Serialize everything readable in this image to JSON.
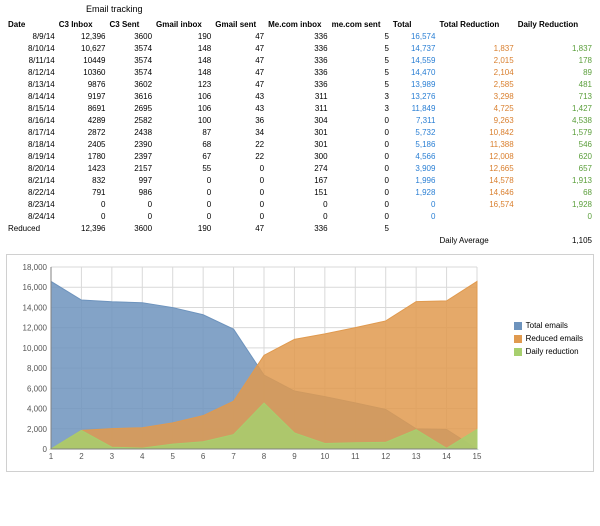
{
  "title": "Email tracking",
  "columns": [
    "Date",
    "C3 Inbox",
    "C3 Sent",
    "Gmail inbox",
    "Gmail sent",
    "Me.com inbox",
    "me.com sent",
    "Total",
    "Total Reduction",
    "Daily Reduction"
  ],
  "rows": [
    {
      "date": "8/9/14",
      "c3i": "12,396",
      "c3s": "3600",
      "gi": "190",
      "gs": "47",
      "mi": "336",
      "ms": "5",
      "total": "16,574",
      "tr": "",
      "dr": ""
    },
    {
      "date": "8/10/14",
      "c3i": "10,627",
      "c3s": "3574",
      "gi": "148",
      "gs": "47",
      "mi": "336",
      "ms": "5",
      "total": "14,737",
      "tr": "1,837",
      "dr": "1,837"
    },
    {
      "date": "8/11/14",
      "c3i": "10449",
      "c3s": "3574",
      "gi": "148",
      "gs": "47",
      "mi": "336",
      "ms": "5",
      "total": "14,559",
      "tr": "2,015",
      "dr": "178"
    },
    {
      "date": "8/12/14",
      "c3i": "10360",
      "c3s": "3574",
      "gi": "148",
      "gs": "47",
      "mi": "336",
      "ms": "5",
      "total": "14,470",
      "tr": "2,104",
      "dr": "89"
    },
    {
      "date": "8/13/14",
      "c3i": "9876",
      "c3s": "3602",
      "gi": "123",
      "gs": "47",
      "mi": "336",
      "ms": "5",
      "total": "13,989",
      "tr": "2,585",
      "dr": "481"
    },
    {
      "date": "8/14/14",
      "c3i": "9197",
      "c3s": "3616",
      "gi": "106",
      "gs": "43",
      "mi": "311",
      "ms": "3",
      "total": "13,276",
      "tr": "3,298",
      "dr": "713"
    },
    {
      "date": "8/15/14",
      "c3i": "8691",
      "c3s": "2695",
      "gi": "106",
      "gs": "43",
      "mi": "311",
      "ms": "3",
      "total": "11,849",
      "tr": "4,725",
      "dr": "1,427"
    },
    {
      "date": "8/16/14",
      "c3i": "4289",
      "c3s": "2582",
      "gi": "100",
      "gs": "36",
      "mi": "304",
      "ms": "0",
      "total": "7,311",
      "tr": "9,263",
      "dr": "4,538"
    },
    {
      "date": "8/17/14",
      "c3i": "2872",
      "c3s": "2438",
      "gi": "87",
      "gs": "34",
      "mi": "301",
      "ms": "0",
      "total": "5,732",
      "tr": "10,842",
      "dr": "1,579"
    },
    {
      "date": "8/18/14",
      "c3i": "2405",
      "c3s": "2390",
      "gi": "68",
      "gs": "22",
      "mi": "301",
      "ms": "0",
      "total": "5,186",
      "tr": "11,388",
      "dr": "546"
    },
    {
      "date": "8/19/14",
      "c3i": "1780",
      "c3s": "2397",
      "gi": "67",
      "gs": "22",
      "mi": "300",
      "ms": "0",
      "total": "4,566",
      "tr": "12,008",
      "dr": "620"
    },
    {
      "date": "8/20/14",
      "c3i": "1423",
      "c3s": "2157",
      "gi": "55",
      "gs": "0",
      "mi": "274",
      "ms": "0",
      "total": "3,909",
      "tr": "12,665",
      "dr": "657"
    },
    {
      "date": "8/21/14",
      "c3i": "832",
      "c3s": "997",
      "gi": "0",
      "gs": "0",
      "mi": "167",
      "ms": "0",
      "total": "1,996",
      "tr": "14,578",
      "dr": "1,913"
    },
    {
      "date": "8/22/14",
      "c3i": "791",
      "c3s": "986",
      "gi": "0",
      "gs": "0",
      "mi": "151",
      "ms": "0",
      "total": "1,928",
      "tr": "14,646",
      "dr": "68"
    },
    {
      "date": "8/23/14",
      "c3i": "0",
      "c3s": "0",
      "gi": "0",
      "gs": "0",
      "mi": "0",
      "ms": "0",
      "total": "0",
      "tr": "16,574",
      "dr": "1,928"
    },
    {
      "date": "8/24/14",
      "c3i": "0",
      "c3s": "0",
      "gi": "0",
      "gs": "0",
      "mi": "0",
      "ms": "0",
      "total": "0",
      "tr": "",
      "dr": "0"
    }
  ],
  "reduced": {
    "label": "Reduced",
    "c3i": "12,396",
    "c3s": "3600",
    "gi": "190",
    "gs": "47",
    "mi": "336",
    "ms": "5"
  },
  "daily_avg": {
    "label": "Daily Average",
    "value": "1,105"
  },
  "chart": {
    "type": "area",
    "x": [
      1,
      2,
      3,
      4,
      5,
      6,
      7,
      8,
      9,
      10,
      11,
      12,
      13,
      14,
      15
    ],
    "ymax": 18000,
    "yticks": [
      0,
      2000,
      4000,
      6000,
      8000,
      10000,
      12000,
      14000,
      16000,
      18000
    ],
    "ytick_labels": [
      "0",
      "2,000",
      "4,000",
      "6,000",
      "8,000",
      "10,000",
      "12,000",
      "14,000",
      "16,000",
      "18,000"
    ],
    "series": [
      {
        "name": "Total emails",
        "color": "#6d93bd",
        "values": [
          16574,
          14737,
          14559,
          14470,
          13989,
          13276,
          11849,
          7311,
          5732,
          5186,
          4566,
          3909,
          1996,
          1928,
          0
        ]
      },
      {
        "name": "Reduced emails",
        "color": "#e09a4f",
        "values": [
          0,
          1837,
          2015,
          2104,
          2585,
          3298,
          4725,
          9263,
          10842,
          11388,
          12008,
          12665,
          14578,
          14646,
          16574
        ]
      },
      {
        "name": "Daily reduction",
        "color": "#a7cf6e",
        "values": [
          0,
          1837,
          178,
          89,
          481,
          713,
          1427,
          4538,
          1579,
          546,
          620,
          657,
          1913,
          68,
          1928
        ]
      }
    ],
    "legend_labels": [
      "Total emails",
      "Reduced emails",
      "Daily reduction"
    ],
    "grid_color": "#d9d9d9",
    "axis_color": "#808080",
    "axis_font_size": 8,
    "plot_bg": "#ffffff"
  }
}
